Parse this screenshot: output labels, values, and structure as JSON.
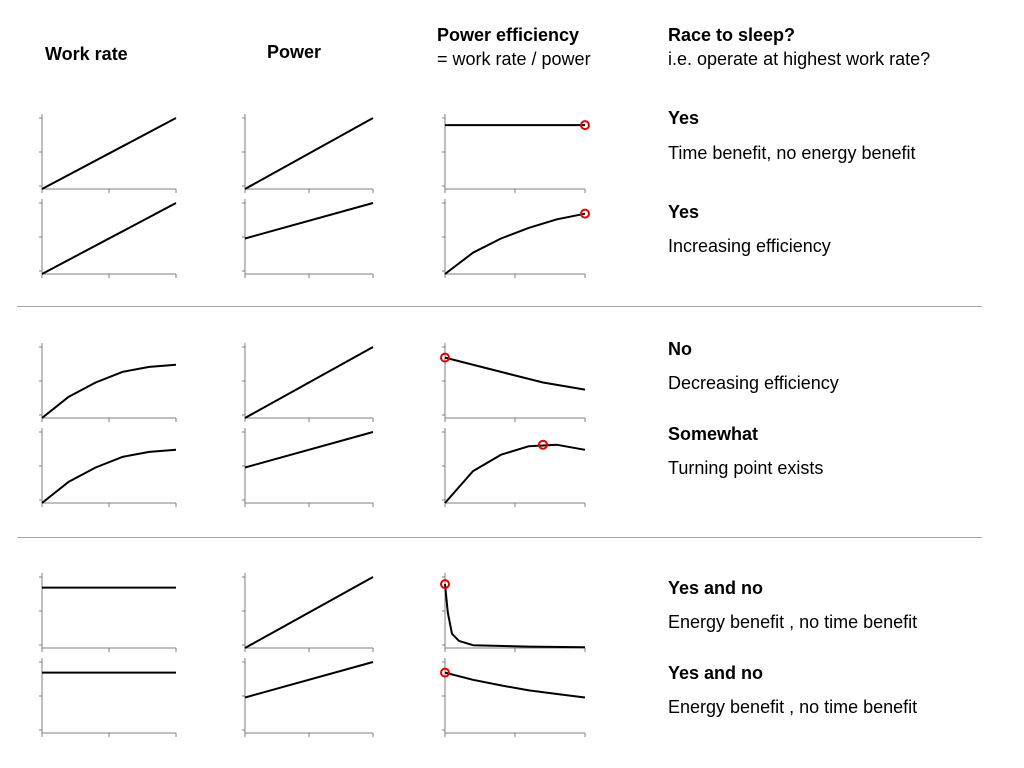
{
  "headers": {
    "work_rate": "Work rate",
    "power": "Power",
    "power_efficiency": "Power efficiency",
    "power_efficiency_formula": "= work rate / power",
    "race_to_sleep": "Race to sleep?",
    "race_to_sleep_sub": "i.e. operate at highest work rate?"
  },
  "rows": [
    {
      "answer": "Yes",
      "description": "Time benefit, no energy benefit"
    },
    {
      "answer": "Yes",
      "description": "Increasing efficiency"
    },
    {
      "answer": "No",
      "description": "Decreasing efficiency"
    },
    {
      "answer": "Somewhat",
      "description": "Turning point exists"
    },
    {
      "answer": "Yes and no",
      "description": "Energy benefit , no time benefit"
    },
    {
      "answer": "Yes and no",
      "description": "Energy benefit , no time benefit"
    }
  ],
  "colors": {
    "curve": "#000000",
    "axis": "#7f7f7f",
    "marker": "#e00000",
    "divider": "#a6a6a6"
  },
  "chart_data": {
    "type": "line",
    "description_note": "",
    "rows": [
      {
        "work_rate": [
          [
            0,
            0
          ],
          [
            1,
            1
          ]
        ],
        "power": [
          [
            0,
            0
          ],
          [
            1,
            1
          ]
        ],
        "efficiency": [
          [
            0,
            0.9
          ],
          [
            1,
            0.9
          ]
        ],
        "marker": [
          1,
          0.9
        ]
      },
      {
        "work_rate": [
          [
            0,
            0
          ],
          [
            1,
            1
          ]
        ],
        "power": [
          [
            0,
            0.5
          ],
          [
            1,
            1
          ]
        ],
        "efficiency": [
          [
            0,
            0
          ],
          [
            0.2,
            0.3
          ],
          [
            0.4,
            0.5
          ],
          [
            0.6,
            0.65
          ],
          [
            0.8,
            0.77
          ],
          [
            1,
            0.85
          ]
        ],
        "marker": [
          1,
          0.85
        ]
      },
      {
        "work_rate": [
          [
            0,
            0
          ],
          [
            0.2,
            0.3
          ],
          [
            0.4,
            0.5
          ],
          [
            0.6,
            0.65
          ],
          [
            0.8,
            0.72
          ],
          [
            1,
            0.75
          ]
        ],
        "power": [
          [
            0,
            0
          ],
          [
            1,
            1
          ]
        ],
        "efficiency": [
          [
            0,
            0.85
          ],
          [
            0.4,
            0.65
          ],
          [
            0.7,
            0.5
          ],
          [
            1,
            0.4
          ]
        ],
        "marker": [
          0,
          0.85
        ]
      },
      {
        "work_rate": [
          [
            0,
            0
          ],
          [
            0.2,
            0.3
          ],
          [
            0.4,
            0.5
          ],
          [
            0.6,
            0.65
          ],
          [
            0.8,
            0.72
          ],
          [
            1,
            0.75
          ]
        ],
        "power": [
          [
            0,
            0.5
          ],
          [
            1,
            1
          ]
        ],
        "efficiency": [
          [
            0,
            0
          ],
          [
            0.2,
            0.45
          ],
          [
            0.4,
            0.68
          ],
          [
            0.6,
            0.8
          ],
          [
            0.8,
            0.82
          ],
          [
            1,
            0.75
          ]
        ],
        "marker": [
          0.7,
          0.82
        ]
      },
      {
        "work_rate": [
          [
            0,
            0.85
          ],
          [
            1,
            0.85
          ]
        ],
        "power": [
          [
            0,
            0
          ],
          [
            1,
            1
          ]
        ],
        "efficiency": [
          [
            0,
            0.9
          ],
          [
            0.02,
            0.5
          ],
          [
            0.05,
            0.2
          ],
          [
            0.1,
            0.1
          ],
          [
            0.2,
            0.04
          ],
          [
            0.6,
            0.02
          ],
          [
            1,
            0.01
          ]
        ],
        "marker": [
          0,
          0.9
        ]
      },
      {
        "work_rate": [
          [
            0,
            0.85
          ],
          [
            1,
            0.85
          ]
        ],
        "power": [
          [
            0,
            0.5
          ],
          [
            1,
            1
          ]
        ],
        "efficiency": [
          [
            0,
            0.85
          ],
          [
            0.2,
            0.75
          ],
          [
            0.4,
            0.67
          ],
          [
            0.6,
            0.6
          ],
          [
            0.8,
            0.55
          ],
          [
            1,
            0.5
          ]
        ],
        "marker": [
          0,
          0.85
        ]
      }
    ]
  }
}
